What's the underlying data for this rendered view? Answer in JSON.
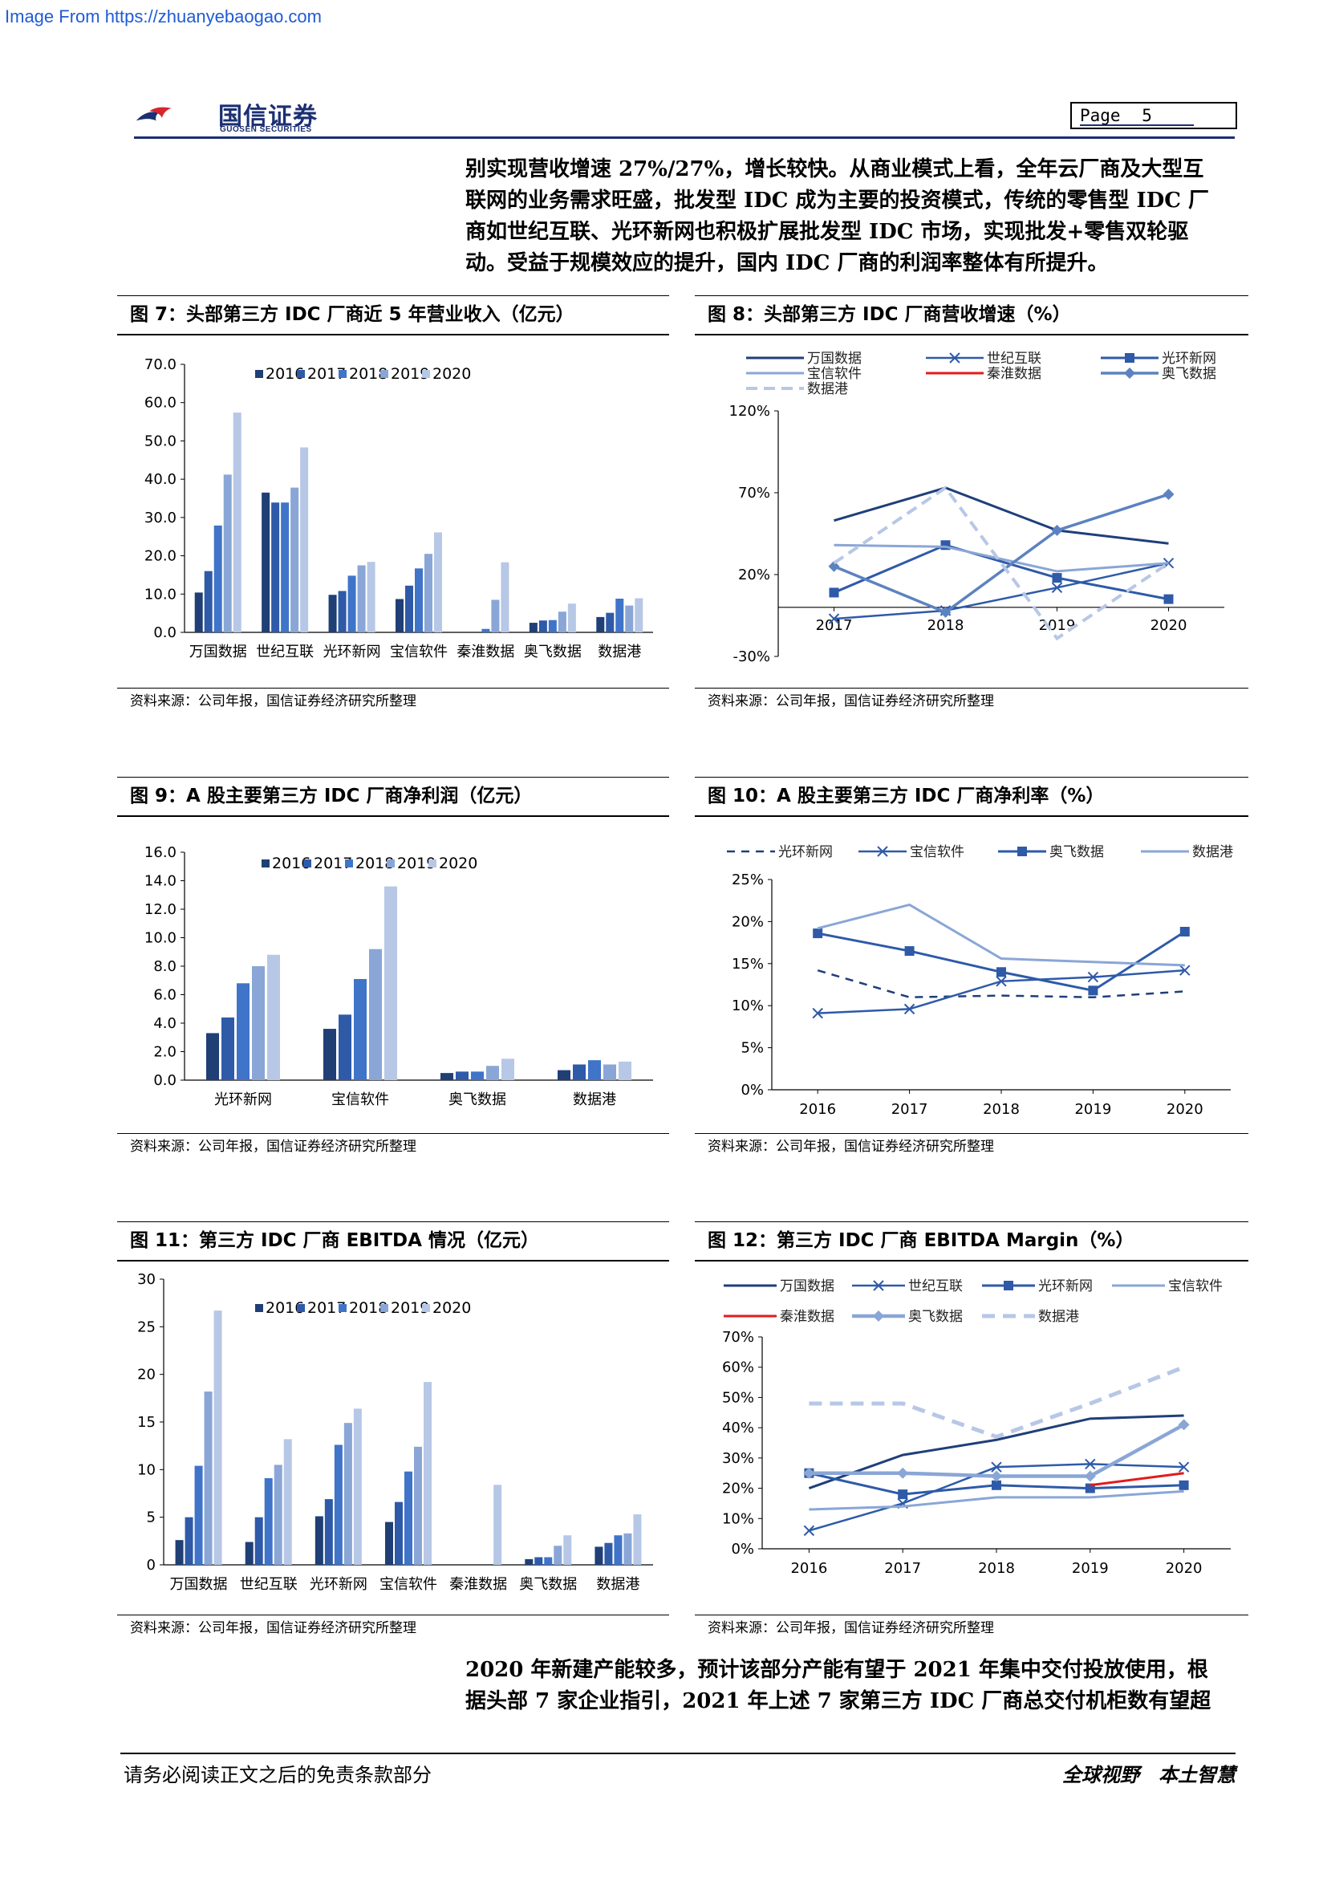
{
  "source_url": "Image From https://zhuanyebaogao.com",
  "header": {
    "logo_cn": "国信证券",
    "logo_en": "GUOSEN SECURITIES",
    "page_label": "Page",
    "page_number": "5"
  },
  "intro_lines": [
    "别实现营收增速 27%/27%，增长较快。从商业模式上看，全年云厂商及大型互",
    "联网的业务需求旺盛，批发型 IDC 成为主要的投资模式，传统的零售型 IDC 厂",
    "商如世纪互联、光环新网也积极扩展批发型 IDC 市场，实现批发+零售双轮驱",
    "动。受益于规模效应的提升，国内 IDC 厂商的利润率整体有所提升。"
  ],
  "figures": {
    "fig7": {
      "title": "图 7：头部第三方 IDC 厂商近 5 年营业收入（亿元）",
      "source": "资料来源：公司年报，国信证券经济研究所整理"
    },
    "fig8": {
      "title": "图 8：头部第三方 IDC 厂商营收增速（%）",
      "source": "资料来源：公司年报，国信证券经济研究所整理"
    },
    "fig9": {
      "title": "图 9：A 股主要第三方 IDC 厂商净利润（亿元）",
      "source": "资料来源：公司年报，国信证券经济研究所整理"
    },
    "fig10": {
      "title": "图 10：A 股主要第三方 IDC 厂商净利率（%）",
      "source": "资料来源：公司年报，国信证券经济研究所整理"
    },
    "fig11": {
      "title": "图 11：第三方 IDC 厂商 EBITDA 情况（亿元）",
      "source": "资料来源：公司年报，国信证券经济研究所整理"
    },
    "fig12": {
      "title": "图 12：第三方 IDC 厂商 EBITDA Margin（%）",
      "source": "资料来源：公司年报，国信证券经济研究所整理"
    }
  },
  "colors": {
    "bar_years": [
      "#1f3f75",
      "#2e5aa8",
      "#3f74c8",
      "#8aa6d6",
      "#b7c7e6"
    ],
    "navy": "#1b2f72",
    "red": "#e31b1b"
  },
  "chart_data": [
    {
      "id": "fig7",
      "type": "bar",
      "categories": [
        "万国数据",
        "世纪互联",
        "光环新网",
        "宝信软件",
        "秦淮数据",
        "奥飞数据",
        "数据港"
      ],
      "series": [
        {
          "name": "2016",
          "values": [
            10.4,
            36.5,
            9.8,
            8.7,
            0,
            2.5,
            4.0
          ]
        },
        {
          "name": "2017",
          "values": [
            16.0,
            33.9,
            10.8,
            12.2,
            0,
            3.1,
            5.1
          ]
        },
        {
          "name": "2018",
          "values": [
            27.9,
            33.9,
            14.8,
            16.7,
            0.9,
            3.2,
            8.8
          ]
        },
        {
          "name": "2019",
          "values": [
            41.2,
            37.8,
            17.5,
            20.5,
            8.5,
            5.4,
            7.0
          ]
        },
        {
          "name": "2020",
          "values": [
            57.4,
            48.3,
            18.4,
            26.1,
            18.3,
            7.5,
            8.9
          ]
        }
      ],
      "ylim": [
        0,
        70
      ],
      "yticks": [
        "0.0",
        "10.0",
        "20.0",
        "30.0",
        "40.0",
        "50.0",
        "60.0",
        "70.0"
      ],
      "legend": "top"
    },
    {
      "id": "fig8",
      "type": "line",
      "x": [
        "2017",
        "2018",
        "2019",
        "2020"
      ],
      "series": [
        {
          "name": "万国数据",
          "values": [
            53,
            73,
            47,
            39
          ]
        },
        {
          "name": "世纪互联",
          "values": [
            -7,
            -2,
            12,
            27
          ]
        },
        {
          "name": "光环新网",
          "values": [
            9,
            38,
            18,
            5
          ]
        },
        {
          "name": "宝信软件",
          "values": [
            38,
            37,
            22,
            27
          ]
        },
        {
          "name": "秦淮数据",
          "values": [
            null,
            null,
            null,
            null
          ]
        },
        {
          "name": "奥飞数据",
          "values": [
            25,
            -3,
            47,
            69
          ]
        },
        {
          "name": "数据港",
          "values": [
            27,
            73,
            -19,
            27
          ]
        }
      ],
      "ylim": [
        -30,
        120
      ],
      "yticks": [
        "-30%",
        "20%",
        "70%",
        "120%"
      ],
      "legend": "top"
    },
    {
      "id": "fig9",
      "type": "bar",
      "categories": [
        "光环新网",
        "宝信软件",
        "奥飞数据",
        "数据港"
      ],
      "series": [
        {
          "name": "2016",
          "values": [
            3.3,
            3.6,
            0.5,
            0.7
          ]
        },
        {
          "name": "2017",
          "values": [
            4.4,
            4.6,
            0.6,
            1.1
          ]
        },
        {
          "name": "2018",
          "values": [
            6.8,
            7.1,
            0.6,
            1.4
          ]
        },
        {
          "name": "2019",
          "values": [
            8.0,
            9.2,
            1.0,
            1.1
          ]
        },
        {
          "name": "2020",
          "values": [
            8.8,
            13.6,
            1.5,
            1.3
          ]
        }
      ],
      "ylim": [
        0,
        16
      ],
      "yticks": [
        "0.0",
        "2.0",
        "4.0",
        "6.0",
        "8.0",
        "10.0",
        "12.0",
        "14.0",
        "16.0"
      ],
      "legend": "top"
    },
    {
      "id": "fig10",
      "type": "line",
      "x": [
        "2016",
        "2017",
        "2018",
        "2019",
        "2020"
      ],
      "series": [
        {
          "name": "光环新网",
          "values": [
            14.2,
            11.0,
            11.2,
            11.0,
            11.7
          ]
        },
        {
          "name": "宝信软件",
          "values": [
            9.1,
            9.6,
            12.9,
            13.4,
            14.2
          ]
        },
        {
          "name": "奥飞数据",
          "values": [
            18.6,
            16.5,
            14.0,
            11.8,
            18.8
          ]
        },
        {
          "name": "数据港",
          "values": [
            19.2,
            22.0,
            15.6,
            15.2,
            14.8
          ]
        }
      ],
      "ylim": [
        0,
        25
      ],
      "yticks": [
        "0%",
        "5%",
        "10%",
        "15%",
        "20%",
        "25%"
      ],
      "legend": "top"
    },
    {
      "id": "fig11",
      "type": "bar",
      "categories": [
        "万国数据",
        "世纪互联",
        "光环新网",
        "宝信软件",
        "秦淮数据",
        "奥飞数据",
        "数据港"
      ],
      "series": [
        {
          "name": "2016",
          "values": [
            2.6,
            2.4,
            5.1,
            4.5,
            0,
            0.6,
            1.9
          ]
        },
        {
          "name": "2017",
          "values": [
            5.0,
            5.0,
            6.9,
            6.6,
            0,
            0.8,
            2.3
          ]
        },
        {
          "name": "2018",
          "values": [
            10.4,
            9.1,
            12.6,
            9.8,
            0,
            0.8,
            3.1
          ]
        },
        {
          "name": "2019",
          "values": [
            18.2,
            10.5,
            14.9,
            12.4,
            0,
            2.0,
            3.3
          ]
        },
        {
          "name": "2020",
          "values": [
            26.7,
            13.2,
            16.4,
            19.2,
            8.4,
            3.1,
            5.3
          ]
        }
      ],
      "ylim": [
        0,
        30
      ],
      "yticks": [
        "0",
        "5",
        "10",
        "15",
        "20",
        "25",
        "30"
      ],
      "legend": "top"
    },
    {
      "id": "fig12",
      "type": "line",
      "x": [
        "2016",
        "2017",
        "2018",
        "2019",
        "2020"
      ],
      "series": [
        {
          "name": "万国数据",
          "values": [
            20,
            31,
            36,
            43,
            44
          ]
        },
        {
          "name": "世纪互联",
          "values": [
            6,
            15,
            27,
            28,
            27
          ]
        },
        {
          "name": "光环新网",
          "values": [
            25,
            18,
            21,
            20,
            21
          ]
        },
        {
          "name": "宝信软件",
          "values": [
            13,
            14,
            17,
            17,
            19
          ]
        },
        {
          "name": "秦淮数据",
          "values": [
            null,
            null,
            null,
            21,
            25
          ]
        },
        {
          "name": "奥飞数据",
          "values": [
            25,
            25,
            24,
            24,
            41
          ]
        },
        {
          "name": "数据港",
          "values": [
            48,
            48,
            37,
            48,
            60
          ]
        }
      ],
      "ylim": [
        0,
        70
      ],
      "yticks": [
        "0%",
        "10%",
        "20%",
        "30%",
        "40%",
        "50%",
        "60%",
        "70%"
      ],
      "legend": "top"
    }
  ],
  "closing_lines": [
    "2020 年新建产能较多，预计该部分产能有望于 2021 年集中交付投放使用，根",
    "据头部 7 家企业指引，2021 年上述 7 家第三方 IDC 厂商总交付机柜数有望超"
  ],
  "footer": {
    "disclaimer": "请务必阅读正文之后的免责条款部分",
    "slogan": "全球视野　本土智慧"
  }
}
